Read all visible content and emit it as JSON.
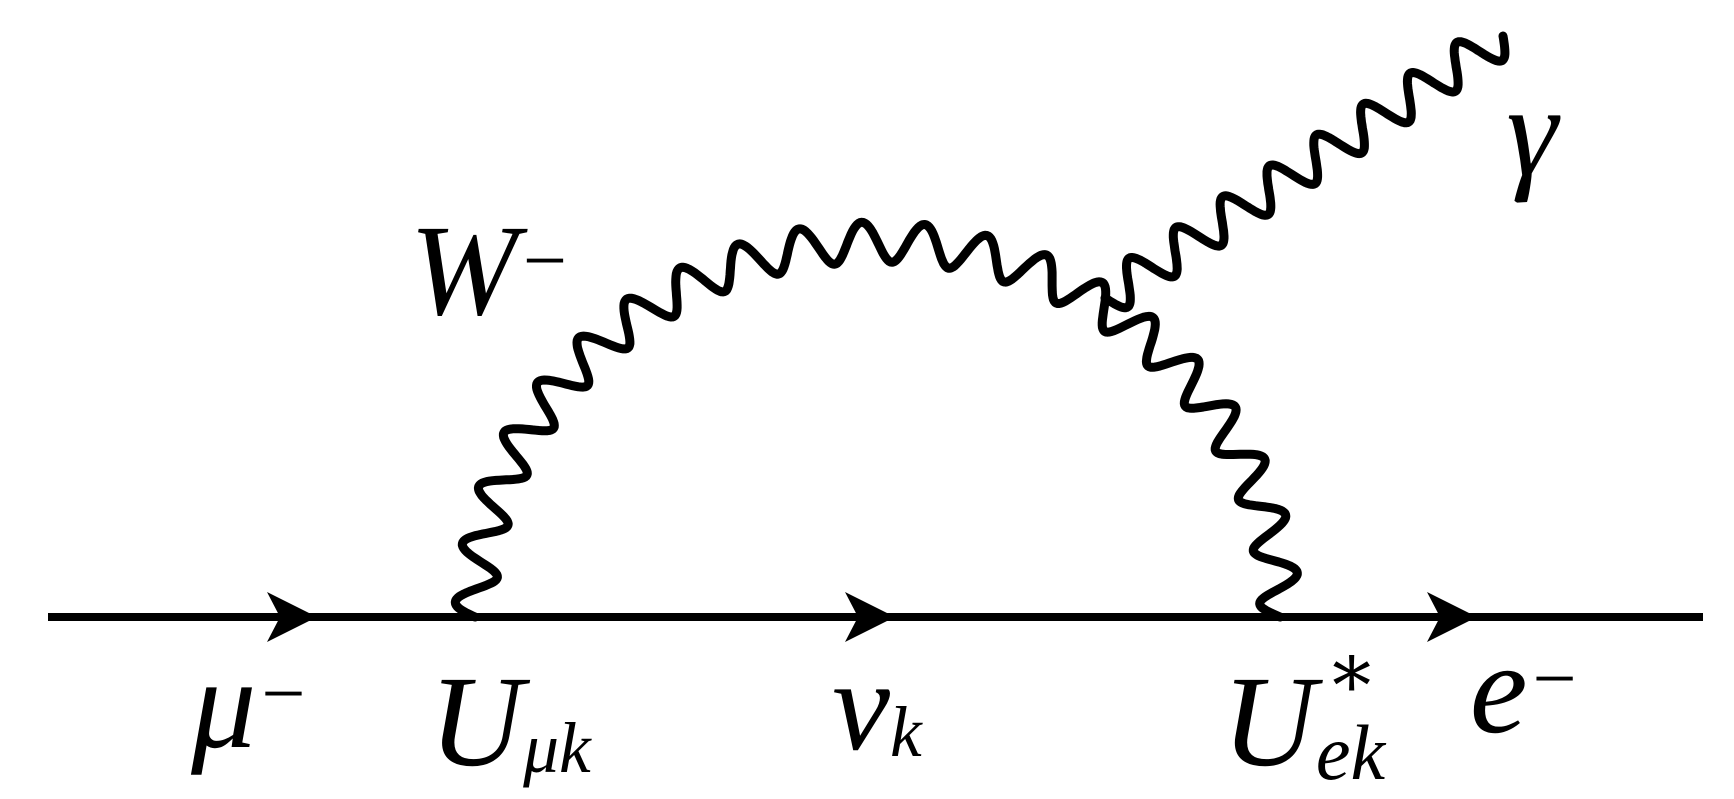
{
  "colors": {
    "ink": "#000000",
    "background": "#ffffff"
  },
  "particles": {
    "muon": {
      "base": "μ",
      "sup": "−"
    },
    "w_boson": {
      "base": "W",
      "sup": "−"
    },
    "mixing_left": {
      "base": "U",
      "sub": "μk"
    },
    "neutrino": {
      "base": "ν",
      "sub": "k"
    },
    "mixing_right": {
      "base": "U",
      "sup": "∗",
      "sub": "ek"
    },
    "electron": {
      "base": "e",
      "sup": "−"
    },
    "photon": {
      "base": "γ"
    }
  }
}
